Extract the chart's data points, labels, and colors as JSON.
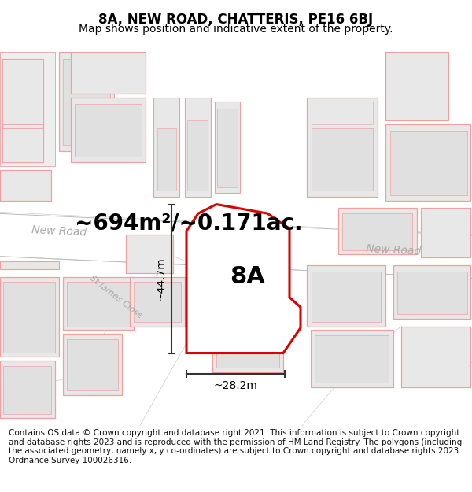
{
  "title": "8A, NEW ROAD, CHATTERIS, PE16 6BJ",
  "subtitle": "Map shows position and indicative extent of the property.",
  "area_label": "~694m²/~0.171ac.",
  "property_label": "8A",
  "dim_width": "~28.2m",
  "dim_height": "~44.7m",
  "footer": "Contains OS data © Crown copyright and database right 2021. This information is subject to Crown copyright and database rights 2023 and is reproduced with the permission of HM Land Registry. The polygons (including the associated geometry, namely x, y co-ordinates) are subject to Crown copyright and database rights 2023 Ordnance Survey 100026316.",
  "bg_color": "#ffffff",
  "map_bg": "#f7f7f7",
  "road_color": "#ffffff",
  "building_fill": "#e8e8e8",
  "building_stroke": "#f0a0a0",
  "highlight_fill": "#ffffff",
  "highlight_stroke": "#dd0000",
  "road_label_color": "#aaaaaa",
  "dim_line_color": "#333333",
  "title_fontsize": 12,
  "subtitle_fontsize": 10,
  "area_fontsize": 20,
  "property_label_fontsize": 22,
  "footer_fontsize": 7.5,
  "road_label_fontsize": 10
}
